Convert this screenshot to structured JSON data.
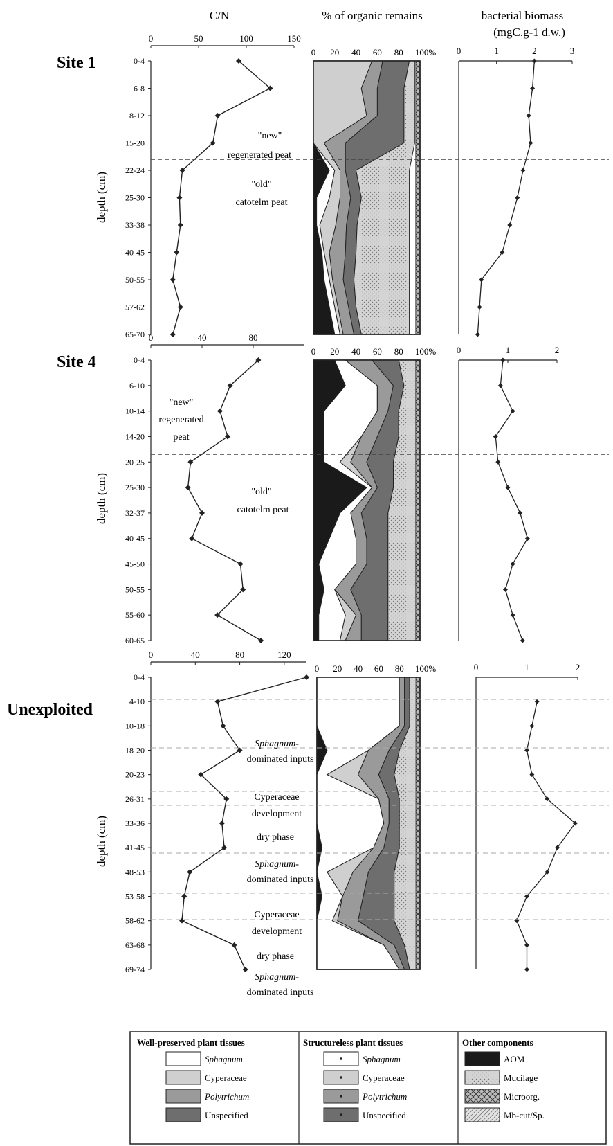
{
  "headers": {
    "cn": "C/N",
    "organic": "% of organic remains",
    "biomass_line1": "bacterial biomass",
    "biomass_line2": "(mgC.g-1 d.w.)",
    "depth_label": "depth (cm)"
  },
  "colors": {
    "line": "#222222",
    "dashed": "#444444",
    "dashed_light": "#aaaaaa",
    "AOM": "#1a1a1a",
    "Sphagnum_well": "#ffffff",
    "Cyperaceae_well": "#cfcfcf",
    "Polytrichum_well": "#9a9a9a",
    "Unspecified_well": "#6e6e6e",
    "Mucilage": "#d4d4d4"
  },
  "chart_data": [
    {
      "panel": "Site 1",
      "site_label": "Site 1",
      "depth_ticks": [
        "0-4",
        "6-8",
        "8-12",
        "15-20",
        "22-24",
        "25-30",
        "33-38",
        "40-45",
        "50-55",
        "57-62",
        "65-70"
      ],
      "cn": {
        "type": "line",
        "xlim": [
          0,
          150
        ],
        "ticks": [
          "0",
          "50",
          "100",
          "150"
        ],
        "values": [
          92,
          125,
          70,
          65,
          33,
          30,
          31,
          27,
          23,
          31,
          23
        ]
      },
      "organic": {
        "type": "area",
        "xlim": [
          0,
          100
        ],
        "ticks": [
          "0",
          "20",
          "40",
          "60",
          "80",
          "100%"
        ],
        "stack_order": [
          "AOM",
          "Sphagnum",
          "Cyperaceae",
          "Polytrichum",
          "Unspecified",
          "Mucilage"
        ],
        "series": {
          "AOM": [
            0,
            0,
            0,
            0,
            15,
            3,
            3,
            8,
            10,
            15,
            20
          ],
          "Sphagnum": [
            0,
            0,
            0,
            0,
            5,
            12,
            3,
            2,
            5,
            5,
            5
          ],
          "Cyperaceae": [
            55,
            45,
            50,
            10,
            5,
            10,
            15,
            5,
            3,
            3,
            3
          ],
          "Polytrichum": [
            10,
            15,
            10,
            20,
            5,
            10,
            10,
            15,
            10,
            10,
            10
          ],
          "Unspecified": [
            25,
            25,
            25,
            55,
            10,
            10,
            10,
            10,
            10,
            7,
            7
          ],
          "Mucilage": [
            5,
            10,
            10,
            10,
            50,
            45,
            49,
            50,
            52,
            50,
            45
          ]
        },
        "annotations": [
          "\"new\"",
          "regenerated peat",
          "\"old\"",
          "catotelm peat"
        ]
      },
      "biomass": {
        "type": "line",
        "xlim": [
          0,
          3
        ],
        "ticks": [
          "0",
          "1",
          "2",
          "3"
        ],
        "values": [
          2.0,
          1.95,
          1.85,
          1.9,
          1.7,
          1.55,
          1.35,
          1.15,
          0.6,
          0.55,
          0.5
        ]
      }
    },
    {
      "panel": "Site 4",
      "site_label": "Site 4",
      "depth_ticks": [
        "0-4",
        "6-10",
        "10-14",
        "14-20",
        "20-25",
        "25-30",
        "32-37",
        "40-45",
        "45-50",
        "50-55",
        "55-60",
        "60-65"
      ],
      "cn": {
        "type": "line",
        "xlim": [
          0,
          120
        ],
        "ticks": [
          "0",
          "40",
          "80"
        ],
        "values": [
          84,
          62,
          54,
          60,
          31,
          29,
          40,
          32,
          70,
          72,
          52,
          86
        ]
      },
      "organic": {
        "type": "area",
        "xlim": [
          0,
          100
        ],
        "ticks": [
          "0",
          "20",
          "40",
          "60",
          "80",
          "100%"
        ],
        "stack_order": [
          "AOM",
          "Sphagnum",
          "Cyperaceae",
          "Polytrichum",
          "Unspecified",
          "Mucilage"
        ],
        "series": {
          "AOM": [
            20,
            30,
            10,
            10,
            10,
            50,
            25,
            15,
            5,
            10,
            5,
            5
          ],
          "Sphagnum": [
            10,
            30,
            50,
            35,
            15,
            5,
            10,
            25,
            35,
            10,
            25,
            20
          ],
          "Cyperaceae": [
            0,
            0,
            0,
            0,
            10,
            0,
            0,
            0,
            0,
            0,
            10,
            5
          ],
          "Polytrichum": [
            25,
            15,
            10,
            15,
            15,
            5,
            10,
            10,
            10,
            15,
            5,
            15
          ],
          "Unspecified": [
            25,
            10,
            10,
            20,
            25,
            15,
            25,
            20,
            20,
            35,
            25,
            25
          ],
          "Mucilage": [
            20,
            15,
            20,
            20,
            25,
            25,
            30,
            30,
            30,
            30,
            30,
            30
          ]
        },
        "annotations": [
          "\"new\"",
          "regenerated",
          "peat",
          "\"old\"",
          "catotelm peat"
        ]
      },
      "biomass": {
        "type": "line",
        "xlim": [
          0,
          2
        ],
        "ticks": [
          "0",
          "1",
          "2"
        ],
        "values": [
          0.9,
          0.85,
          1.1,
          0.75,
          0.8,
          1.0,
          1.25,
          1.4,
          1.1,
          0.95,
          1.1,
          1.3
        ]
      }
    },
    {
      "panel": "Unexploited",
      "site_label": "Unexploited",
      "depth_ticks": [
        "0-4",
        "4-10",
        "10-18",
        "18-20",
        "20-23",
        "26-31",
        "33-36",
        "41-45",
        "48-53",
        "53-58",
        "58-62",
        "63-68",
        "69-74"
      ],
      "cn": {
        "type": "line",
        "xlim": [
          0,
          140
        ],
        "ticks": [
          "0",
          "40",
          "80",
          "120"
        ],
        "values": [
          140,
          60,
          65,
          80,
          45,
          68,
          64,
          66,
          35,
          30,
          28,
          75,
          85
        ]
      },
      "organic": {
        "type": "area",
        "xlim": [
          0,
          100
        ],
        "ticks": [
          "0",
          "20",
          "40",
          "60",
          "80",
          "100%"
        ],
        "stack_order": [
          "AOM",
          "Sphagnum",
          "Cyperaceae",
          "Polytrichum",
          "Unspecified",
          "Mucilage"
        ],
        "series": {
          "AOM": [
            0,
            0,
            0,
            10,
            0,
            0,
            0,
            5,
            0,
            5,
            0,
            0,
            0
          ],
          "Sphagnum": [
            80,
            80,
            80,
            40,
            10,
            60,
            65,
            50,
            10,
            20,
            15,
            65,
            80
          ],
          "Cyperaceae": [
            0,
            0,
            0,
            0,
            30,
            0,
            0,
            0,
            25,
            0,
            5,
            0,
            0
          ],
          "Polytrichum": [
            5,
            5,
            5,
            20,
            20,
            10,
            5,
            10,
            15,
            20,
            20,
            10,
            5
          ],
          "Unspecified": [
            5,
            5,
            5,
            10,
            15,
            10,
            10,
            15,
            25,
            30,
            35,
            10,
            5
          ],
          "Mucilage": [
            10,
            10,
            10,
            20,
            25,
            20,
            20,
            20,
            25,
            25,
            25,
            15,
            10
          ]
        },
        "annotations": [
          "Sphagnum-",
          "dominated inputs",
          "Cyperaceae",
          "development",
          "dry phase",
          "Sphagnum-",
          "dominated inputs",
          "Cyperaceae",
          "development",
          "dry phase",
          "Sphagnum-",
          "dominated inputs"
        ]
      },
      "biomass": {
        "type": "line",
        "xlim": [
          0,
          2
        ],
        "ticks": [
          "0",
          "1",
          "2"
        ],
        "values": [
          null,
          1.2,
          1.1,
          1.0,
          1.1,
          1.4,
          1.95,
          1.6,
          1.4,
          1.0,
          0.8,
          1.0,
          1.0
        ]
      }
    }
  ],
  "legend": {
    "groups": [
      {
        "title": "Well-preserved plant tissues",
        "items": [
          {
            "label": "Sphagnum",
            "italic": true,
            "fill": "#ffffff"
          },
          {
            "label": "Cyperaceae",
            "italic": false,
            "fill": "#cfcfcf"
          },
          {
            "label": "Polytrichum",
            "italic": true,
            "fill": "#9a9a9a"
          },
          {
            "label": "Unspecified",
            "italic": false,
            "fill": "#6e6e6e"
          }
        ]
      },
      {
        "title": "Structureless plant tissues",
        "items": [
          {
            "label": "Sphagnum",
            "italic": true,
            "fill": "#ffffff"
          },
          {
            "label": "Cyperaceae",
            "italic": false,
            "fill": "#cfcfcf"
          },
          {
            "label": "Polytrichum",
            "italic": true,
            "fill": "#9a9a9a"
          },
          {
            "label": "Unspecified",
            "italic": false,
            "fill": "#6e6e6e"
          }
        ]
      },
      {
        "title": "Other components",
        "items": [
          {
            "label": "AOM",
            "italic": false,
            "fill": "#1a1a1a"
          },
          {
            "label": "Mucilage",
            "italic": false,
            "fill": "#d4d4d4"
          },
          {
            "label": "Microorg.",
            "italic": false,
            "fill": "#8c8c8c"
          },
          {
            "label": "Mb-cut/Sp.",
            "italic": false,
            "fill": "#bdbdbd"
          }
        ]
      }
    ]
  }
}
